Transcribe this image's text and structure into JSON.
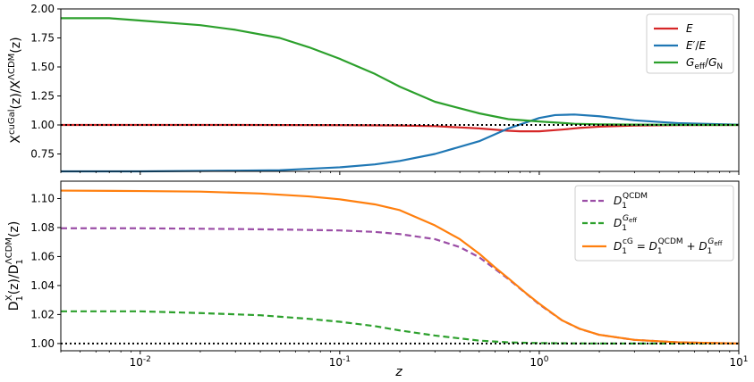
{
  "chart_data": [
    {
      "type": "line",
      "ylabel": "X^cuGal(z)/X^ΛCDM(z)",
      "xscale": "log",
      "xlim": [
        0.004,
        10
      ],
      "ylim": [
        0.6,
        2.0
      ],
      "yticks": [
        "0.75",
        "1.00",
        "1.25",
        "1.50",
        "1.75",
        "2.00"
      ],
      "legend_position": "top-right",
      "reference_line": {
        "y": 1.0,
        "style": "dotted",
        "color": "#000000"
      },
      "series": [
        {
          "name": "E",
          "color": "#d62728",
          "x": [
            0.004,
            0.01,
            0.03,
            0.1,
            0.2,
            0.3,
            0.5,
            0.7,
            0.8,
            1.0,
            1.3,
            1.6,
            2.0,
            3.0,
            5.0,
            10.0
          ],
          "y": [
            1.0,
            1.0,
            1.0,
            0.998,
            0.995,
            0.99,
            0.97,
            0.95,
            0.945,
            0.945,
            0.96,
            0.975,
            0.985,
            0.995,
            0.999,
            1.0
          ]
        },
        {
          "name": "E′/E",
          "color": "#1f77b4",
          "x": [
            0.004,
            0.01,
            0.03,
            0.05,
            0.1,
            0.15,
            0.2,
            0.3,
            0.5,
            0.7,
            1.0,
            1.2,
            1.5,
            2.0,
            3.0,
            5.0,
            10.0
          ],
          "y": [
            0.6,
            0.6,
            0.606,
            0.61,
            0.635,
            0.66,
            0.69,
            0.75,
            0.86,
            0.97,
            1.06,
            1.085,
            1.09,
            1.075,
            1.04,
            1.015,
            1.002
          ]
        },
        {
          "name": "G_eff/G_N",
          "color": "#2ca02c",
          "x": [
            0.004,
            0.007,
            0.01,
            0.02,
            0.03,
            0.05,
            0.07,
            0.1,
            0.15,
            0.2,
            0.3,
            0.5,
            0.7,
            1.0,
            1.5,
            2.0,
            3.0,
            5.0,
            10.0
          ],
          "y": [
            1.92,
            1.92,
            1.9,
            1.86,
            1.82,
            1.75,
            1.67,
            1.57,
            1.44,
            1.33,
            1.2,
            1.1,
            1.05,
            1.03,
            1.01,
            1.005,
            1.003,
            1.001,
            1.0
          ]
        }
      ]
    },
    {
      "type": "line",
      "xlabel": "z",
      "ylabel": "D_1^X(z)/D_1^ΛCDM(z)",
      "xscale": "log",
      "xlim": [
        0.004,
        10
      ],
      "ylim": [
        0.995,
        1.112
      ],
      "yticks": [
        "1.00",
        "1.02",
        "1.04",
        "1.06",
        "1.08",
        "1.10"
      ],
      "xticks": [
        "10^-2",
        "10^-1",
        "10^0",
        "10^1"
      ],
      "legend_position": "top-right",
      "reference_line": {
        "y": 1.0,
        "style": "dotted",
        "color": "#000000"
      },
      "series": [
        {
          "name": "D_1^QCDM",
          "color": "#9b4ea6",
          "dash": "dashed",
          "x": [
            0.004,
            0.01,
            0.03,
            0.06,
            0.1,
            0.15,
            0.2,
            0.3,
            0.4,
            0.5,
            0.6,
            0.7,
            0.85,
            1.0,
            1.3,
            1.6,
            2.0,
            3.0,
            5.0,
            10.0
          ],
          "y": [
            1.0795,
            1.0795,
            1.079,
            1.0785,
            1.078,
            1.077,
            1.0755,
            1.072,
            1.0665,
            1.0595,
            1.0515,
            1.0445,
            1.035,
            1.027,
            1.016,
            1.01,
            1.006,
            1.0025,
            1.0008,
            1.0
          ]
        },
        {
          "name": "D_1^G_eff",
          "color": "#2ca02c",
          "dash": "dashed",
          "x": [
            0.004,
            0.01,
            0.02,
            0.04,
            0.07,
            0.1,
            0.15,
            0.2,
            0.3,
            0.5,
            0.7,
            1.0,
            1.5,
            2.0,
            5.0,
            10.0
          ],
          "y": [
            1.0222,
            1.0222,
            1.021,
            1.0195,
            1.017,
            1.015,
            1.012,
            1.009,
            1.0055,
            1.002,
            1.0008,
            1.0003,
            1.0001,
            1.0,
            1.0,
            1.0
          ]
        },
        {
          "name": "D_1^cG = D_1^QCDM + D_1^G_eff",
          "color": "#ff7f0e",
          "dash": "solid",
          "x": [
            0.004,
            0.01,
            0.02,
            0.04,
            0.07,
            0.1,
            0.15,
            0.2,
            0.3,
            0.4,
            0.5,
            0.6,
            0.7,
            0.85,
            1.0,
            1.3,
            1.6,
            2.0,
            3.0,
            5.0,
            10.0
          ],
          "y": [
            1.1055,
            1.1052,
            1.1048,
            1.1035,
            1.1015,
            1.0995,
            1.096,
            1.092,
            1.0815,
            1.072,
            1.062,
            1.0525,
            1.045,
            1.0352,
            1.0275,
            1.016,
            1.0101,
            1.006,
            1.0025,
            1.0008,
            1.0
          ]
        }
      ]
    }
  ],
  "legend_labels": {
    "top": [
      "E",
      "E′/E",
      "G_eff/G_N"
    ],
    "bottom": [
      "D_1^QCDM",
      "D_1^G_eff",
      "D_1^cG = D_1^QCDM + D_1^G_eff"
    ]
  }
}
